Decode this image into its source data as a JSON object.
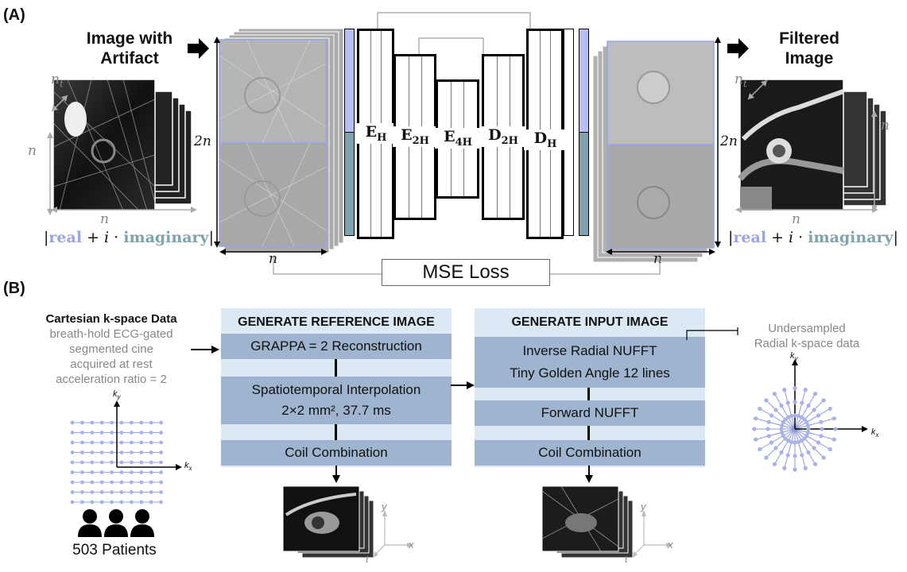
{
  "panel_a": {
    "label": "(A)",
    "input_title": "Image with Artifact",
    "output_title": "Filtered Image",
    "dims": {
      "nt": "n",
      "nt_sub": "t",
      "n": "n",
      "two_n": "2n"
    },
    "formula": {
      "bar_left": "|",
      "real": "real",
      "plus": " + ",
      "i": "i",
      "dot": " · ",
      "imag": "imaginary",
      "bar_right": "|"
    },
    "encoder_decoder": [
      {
        "main": "E",
        "sub": "H"
      },
      {
        "main": "E",
        "sub": "2H"
      },
      {
        "main": "E",
        "sub": "4H"
      },
      {
        "main": "D",
        "sub": "2H"
      },
      {
        "main": "D",
        "sub": "H"
      }
    ],
    "loss": "MSE Loss"
  },
  "panel_b": {
    "label": "(B)",
    "source": {
      "title": "Cartesian k-space Data",
      "lines": [
        "breath-hold ECG-gated",
        "segmented cine",
        "acquired at rest",
        "acceleration ratio = 2"
      ],
      "kx": "k",
      "kx_sub": "x",
      "ky": "k",
      "ky_sub": "y",
      "patients": "503 Patients"
    },
    "reference": {
      "title": "GENERATE REFERENCE IMAGE",
      "step1": "GRAPPA = 2 Reconstruction",
      "step2_line1": "Spatiotemporal Interpolation",
      "step2_line2": "2×2 mm², 37.7 ms",
      "step3": "Coil Combination"
    },
    "input": {
      "title": "GENERATE INPUT IMAGE",
      "step1_line1": "Inverse Radial NUFFT",
      "step1_line2": "Tiny Golden Angle 12 lines",
      "step2": "Forward NUFFT",
      "step3": "Coil Combination"
    },
    "radial": {
      "label_line1": "Undersampled",
      "label_line2": "Radial k-space data",
      "kx": "k",
      "kx_sub": "x",
      "ky": "k",
      "ky_sub": "y"
    },
    "axes": {
      "x": "x",
      "y": "y",
      "t": "t"
    }
  }
}
